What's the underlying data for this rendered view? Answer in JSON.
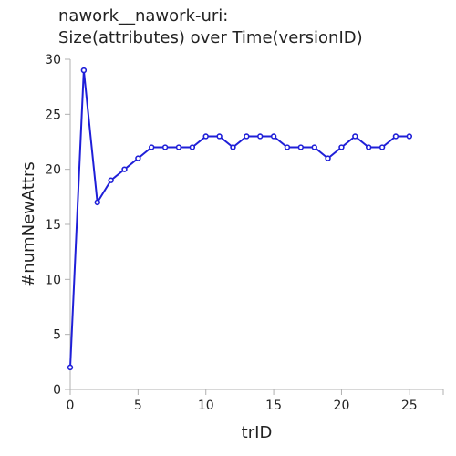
{
  "chart_data": {
    "type": "line",
    "title_lines": [
      "nawork__nawork-uri:",
      "Size(attributes) over Time(versionID)"
    ],
    "xlabel": "trID",
    "ylabel": "#numNewAttrs",
    "xlim": [
      0,
      27.5
    ],
    "ylim": [
      0,
      30
    ],
    "xticks": [
      0,
      5,
      10,
      15,
      20,
      25
    ],
    "yticks": [
      0,
      5,
      10,
      15,
      20,
      25,
      30
    ],
    "grid": false,
    "line_color": "#1f1fd8",
    "series": [
      {
        "x": [
          0,
          1,
          2,
          3,
          4,
          5,
          6,
          7,
          8,
          9,
          10,
          11,
          12,
          13,
          14,
          15,
          16,
          17,
          18,
          19,
          20,
          21,
          22,
          23,
          24,
          25
        ],
        "values": [
          2,
          29,
          17,
          19,
          20,
          21,
          22,
          22,
          22,
          22,
          23,
          23,
          22,
          23,
          23,
          23,
          22,
          22,
          22,
          21,
          22,
          23,
          22,
          22,
          23,
          23
        ]
      }
    ]
  }
}
